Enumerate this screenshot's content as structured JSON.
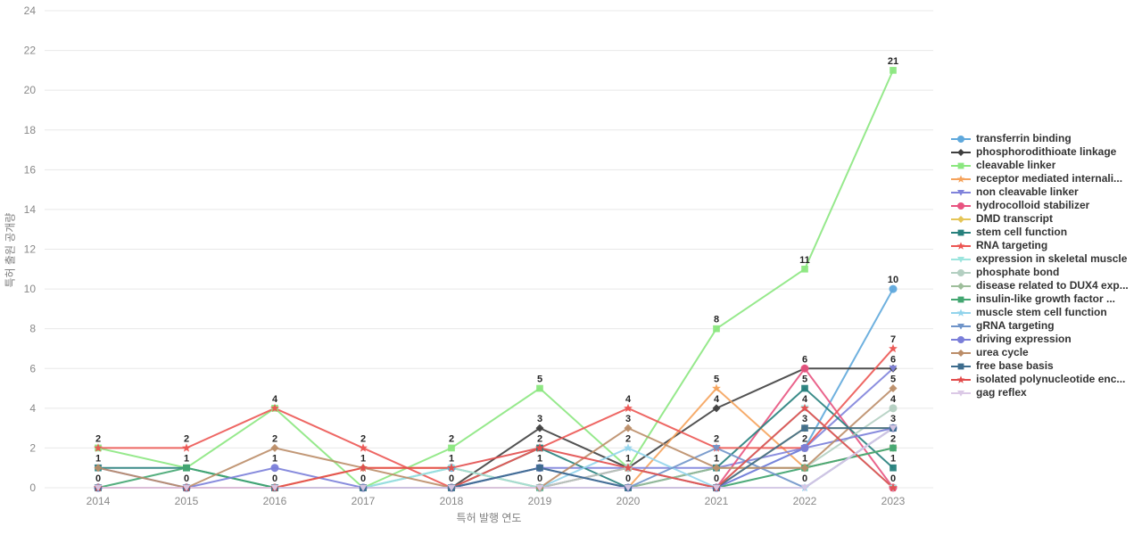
{
  "chart_data": {
    "type": "line",
    "title": "",
    "xlabel": "특허 발행 연도",
    "ylabel": "특허 출원 공개량",
    "x": [
      2014,
      2015,
      2016,
      2017,
      2018,
      2019,
      2020,
      2021,
      2022,
      2023
    ],
    "ylim": [
      0,
      24
    ],
    "yticks": [
      0,
      2,
      4,
      6,
      8,
      10,
      12,
      14,
      16,
      18,
      20,
      22,
      24
    ],
    "grid": "horizontal",
    "legend_position": "right",
    "data_labels": true,
    "colors": {
      "grid": "#e8e8e8",
      "tick_text": "#888888",
      "axis_title_text": "#7f7f7f",
      "data_label_text": "#262626",
      "legend_text": "#333333",
      "background": "#ffffff"
    },
    "series": [
      {
        "name": "transferrin binding",
        "color": "#5FA8DC",
        "marker": "circle",
        "values": [
          0,
          0,
          0,
          0,
          1,
          0,
          1,
          0,
          2,
          10
        ]
      },
      {
        "name": "phosphorodithioate linkage",
        "color": "#3F3F3F",
        "marker": "diamond",
        "values": [
          0,
          0,
          0,
          0,
          0,
          3,
          1,
          4,
          6,
          6
        ]
      },
      {
        "name": "cleavable linker",
        "color": "#8BE77F",
        "marker": "square",
        "values": [
          2,
          1,
          4,
          0,
          2,
          5,
          1,
          8,
          11,
          21
        ]
      },
      {
        "name": "receptor mediated internali...",
        "color": "#F5A35C",
        "marker": "star",
        "values": [
          0,
          0,
          0,
          1,
          1,
          0,
          0,
          5,
          1,
          2
        ]
      },
      {
        "name": "non cleavable linker",
        "color": "#8083DB",
        "marker": "triangle-down",
        "values": [
          1,
          0,
          0,
          0,
          0,
          1,
          1,
          1,
          2,
          6
        ]
      },
      {
        "name": "hydrocolloid stabilizer",
        "color": "#E85380",
        "marker": "circle",
        "values": [
          0,
          0,
          0,
          0,
          0,
          0,
          1,
          0,
          6,
          0
        ]
      },
      {
        "name": "DMD transcript",
        "color": "#E5C558",
        "marker": "diamond",
        "values": [
          0,
          0,
          0,
          0,
          0,
          0,
          0,
          0,
          3,
          3
        ]
      },
      {
        "name": "stem cell function",
        "color": "#26807C",
        "marker": "square",
        "values": [
          1,
          1,
          0,
          0,
          0,
          2,
          0,
          1,
          5,
          1
        ]
      },
      {
        "name": "RNA targeting",
        "color": "#EC5653",
        "marker": "star",
        "values": [
          2,
          2,
          4,
          2,
          0,
          2,
          4,
          2,
          2,
          7
        ]
      },
      {
        "name": "expression in skeletal muscle",
        "color": "#9CE5DE",
        "marker": "triangle-down",
        "values": [
          0,
          0,
          0,
          0,
          1,
          0,
          0,
          0,
          4,
          0
        ]
      },
      {
        "name": "phosphate bond",
        "color": "#B3CFC1",
        "marker": "circle",
        "values": [
          0,
          0,
          0,
          0,
          0,
          0,
          1,
          0,
          1,
          4
        ]
      },
      {
        "name": "disease related to DUX4 exp...",
        "color": "#9EBE9B",
        "marker": "diamond",
        "values": [
          0,
          0,
          0,
          0,
          0,
          0,
          0,
          1,
          1,
          2
        ]
      },
      {
        "name": "insulin-like growth factor ...",
        "color": "#43A671",
        "marker": "square",
        "values": [
          0,
          1,
          0,
          0,
          0,
          0,
          0,
          0,
          1,
          2
        ]
      },
      {
        "name": "muscle stem cell function",
        "color": "#92D4EC",
        "marker": "star",
        "values": [
          0,
          0,
          0,
          0,
          0,
          0,
          2,
          0,
          0,
          3
        ]
      },
      {
        "name": "gRNA targeting",
        "color": "#6F94C9",
        "marker": "triangle-down",
        "values": [
          0,
          0,
          0,
          0,
          0,
          0,
          0,
          2,
          0,
          3
        ]
      },
      {
        "name": "driving expression",
        "color": "#7A7ED9",
        "marker": "circle",
        "values": [
          0,
          0,
          1,
          0,
          0,
          1,
          0,
          0,
          2,
          3
        ]
      },
      {
        "name": "urea cycle",
        "color": "#BB8D68",
        "marker": "diamond",
        "values": [
          1,
          0,
          2,
          1,
          0,
          0,
          3,
          1,
          1,
          5
        ]
      },
      {
        "name": "free base basis",
        "color": "#3D6C8D",
        "marker": "square",
        "values": [
          0,
          0,
          0,
          0,
          0,
          1,
          0,
          0,
          3,
          3
        ]
      },
      {
        "name": "isolated polynucleotide enc...",
        "color": "#E24C4C",
        "marker": "star",
        "values": [
          0,
          0,
          0,
          1,
          1,
          2,
          1,
          0,
          4,
          0
        ]
      },
      {
        "name": "gag reflex",
        "color": "#DBC9E6",
        "marker": "triangle-down",
        "values": [
          0,
          0,
          0,
          0,
          0,
          0,
          0,
          0,
          0,
          3
        ]
      }
    ]
  }
}
